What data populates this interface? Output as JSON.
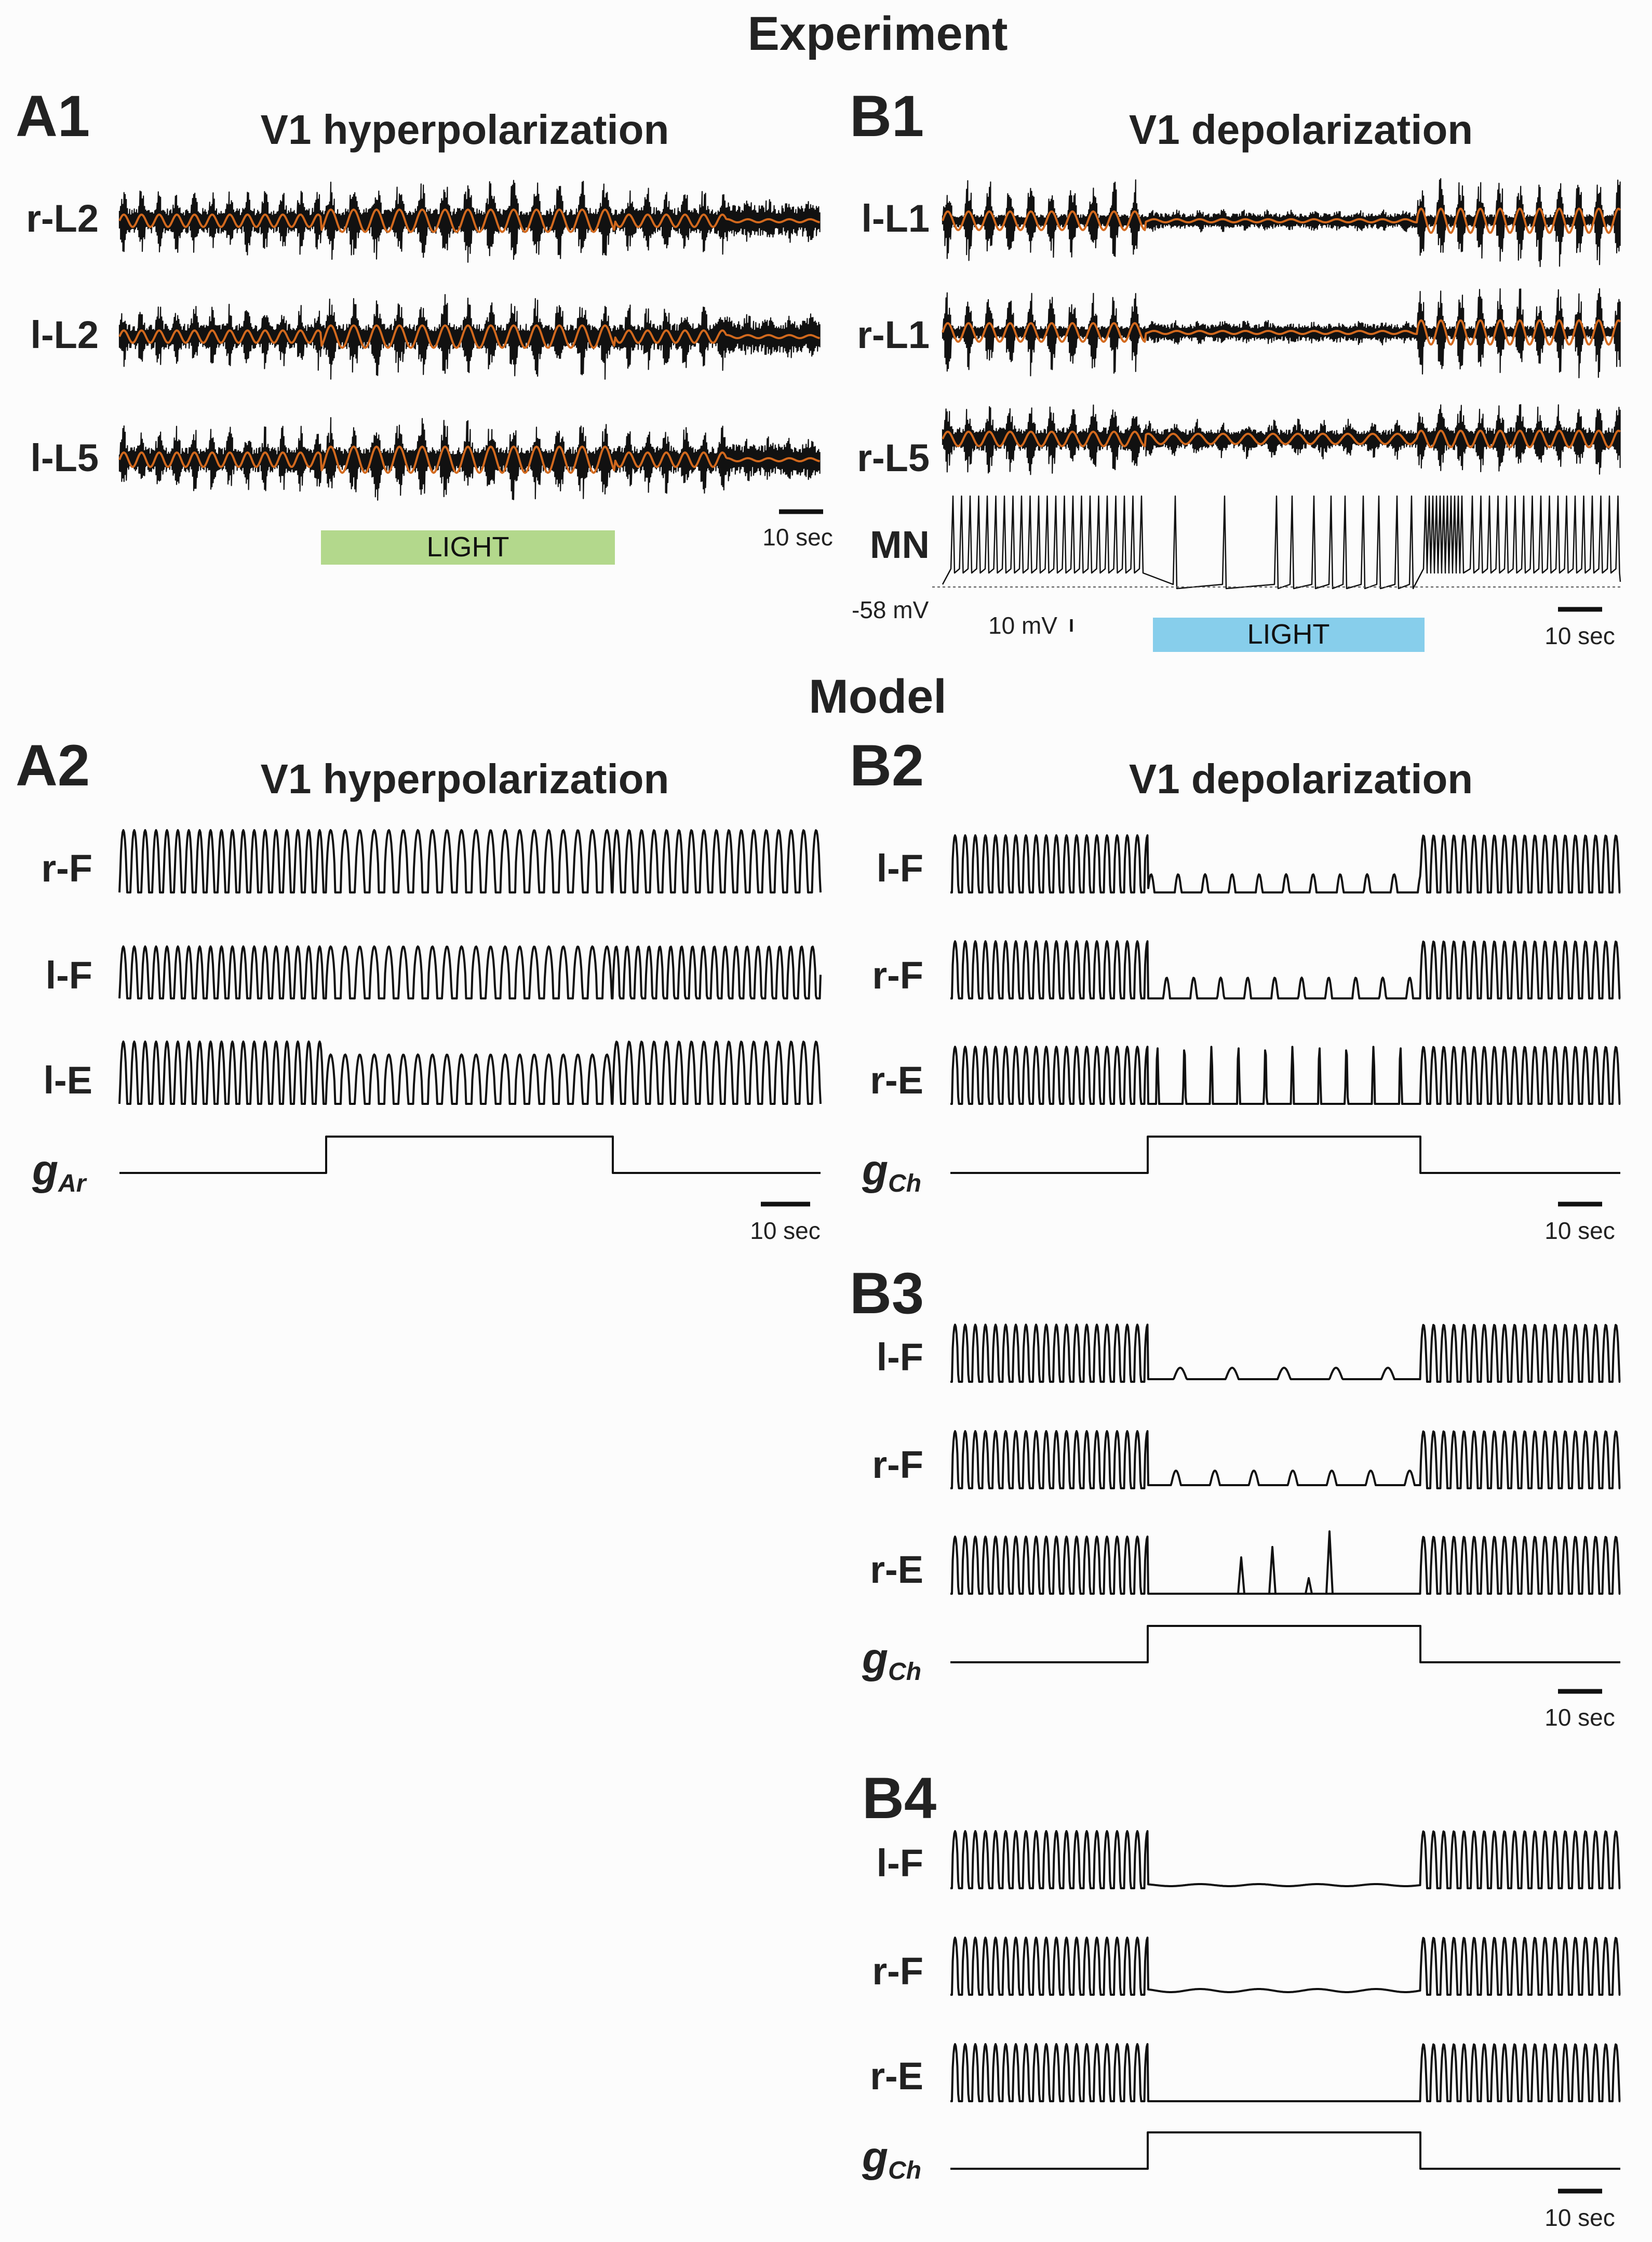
{
  "sections": {
    "experiment": "Experiment",
    "model": "Model"
  },
  "panels": {
    "A1": {
      "label": "A1",
      "title": "V1 hyperpolarization",
      "traces": [
        "r-L2",
        "l-L2",
        "l-L5"
      ],
      "light_label": "LIGHT",
      "light_color": "#b3d88c",
      "scale": "10 sec"
    },
    "B1": {
      "label": "B1",
      "title": "V1 depolarization",
      "traces": [
        "l-L1",
        "r-L1",
        "r-L5",
        "MN"
      ],
      "light_label": "LIGHT",
      "light_color": "#87ceeb",
      "scale": "10 sec",
      "baseline": "-58 mV",
      "voltage_scale": "10 mV"
    },
    "A2": {
      "label": "A2",
      "title": "V1 hyperpolarization",
      "traces": [
        "r-F",
        "l-F",
        "l-E"
      ],
      "g_label": "g",
      "g_sub": "Ar",
      "scale": "10 sec"
    },
    "B2": {
      "label": "B2",
      "title": "V1 depolarization",
      "traces": [
        "l-F",
        "r-F",
        "r-E"
      ],
      "g_label": "g",
      "g_sub": "Ch",
      "scale": "10 sec"
    },
    "B3": {
      "label": "B3",
      "traces": [
        "l-F",
        "r-F",
        "r-E"
      ],
      "g_label": "g",
      "g_sub": "Ch",
      "scale": "10 sec"
    },
    "B4": {
      "label": "B4",
      "traces": [
        "l-F",
        "r-F",
        "r-E"
      ],
      "g_label": "g",
      "g_sub": "Ch",
      "scale": "10 sec"
    }
  },
  "colors": {
    "ink": "#111111",
    "envelope_overlay": "#d2691e"
  }
}
